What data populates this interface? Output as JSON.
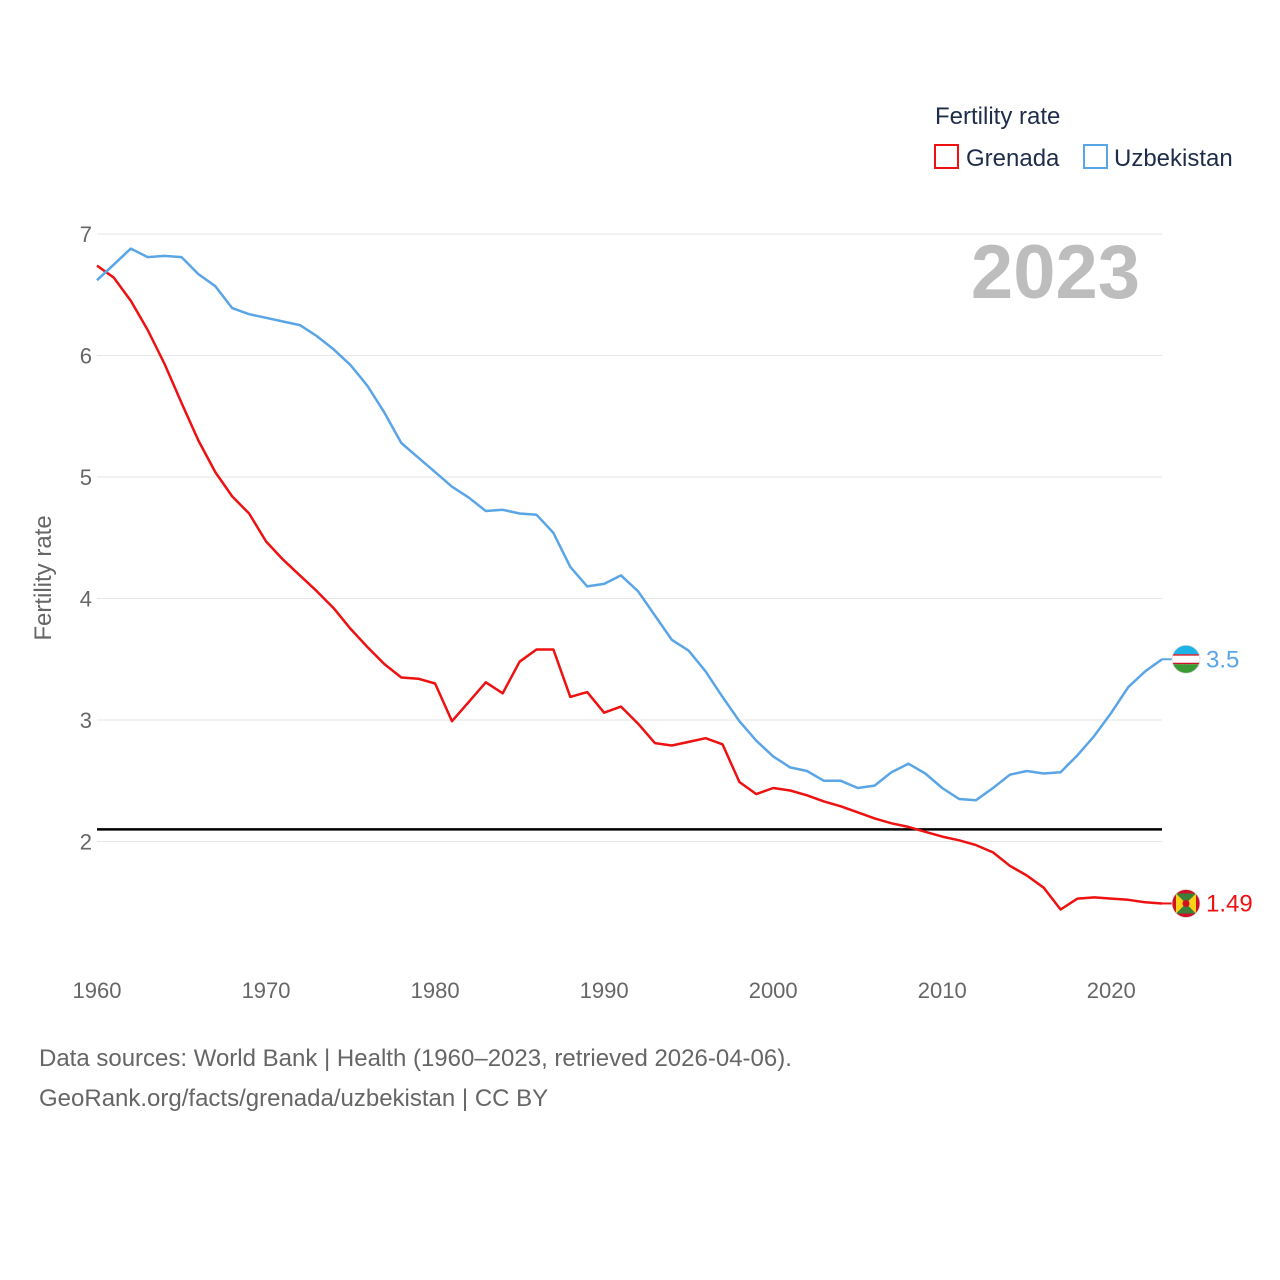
{
  "chart_data": {
    "type": "line",
    "title": "Fertility rate",
    "ylabel": "Fertility rate",
    "xlabel": "",
    "xlim": [
      1960,
      2023
    ],
    "ylim": [
      1,
      7
    ],
    "x_ticks": [
      1960,
      1970,
      1980,
      1990,
      2000,
      2010,
      2020
    ],
    "y_ticks": [
      2,
      3,
      4,
      5,
      6,
      7
    ],
    "year_label": "2023",
    "reference_line": {
      "value": 2.1,
      "color": "#000000"
    },
    "legend": {
      "title": "Fertility rate",
      "placement": "top-right"
    },
    "x": [
      1960,
      1961,
      1962,
      1963,
      1964,
      1965,
      1966,
      1967,
      1968,
      1969,
      1970,
      1971,
      1972,
      1973,
      1974,
      1975,
      1976,
      1977,
      1978,
      1979,
      1980,
      1981,
      1982,
      1983,
      1984,
      1985,
      1986,
      1987,
      1988,
      1989,
      1990,
      1991,
      1992,
      1993,
      1994,
      1995,
      1996,
      1997,
      1998,
      1999,
      2000,
      2001,
      2002,
      2003,
      2004,
      2005,
      2006,
      2007,
      2008,
      2009,
      2010,
      2011,
      2012,
      2013,
      2014,
      2015,
      2016,
      2017,
      2018,
      2019,
      2020,
      2021,
      2022,
      2023
    ],
    "series": [
      {
        "name": "Grenada",
        "color": "#ee1111",
        "end_label": "1.49",
        "flag": "grenada-flag",
        "values": [
          6.74,
          6.64,
          6.45,
          6.21,
          5.93,
          5.61,
          5.3,
          5.04,
          4.84,
          4.7,
          4.47,
          4.32,
          4.19,
          4.06,
          3.92,
          3.75,
          3.6,
          3.46,
          3.35,
          3.34,
          3.3,
          2.99,
          3.15,
          3.31,
          3.22,
          3.48,
          3.58,
          3.58,
          3.19,
          3.23,
          3.06,
          3.11,
          2.97,
          2.81,
          2.79,
          2.82,
          2.85,
          2.8,
          2.49,
          2.39,
          2.44,
          2.42,
          2.38,
          2.33,
          2.29,
          2.24,
          2.19,
          2.15,
          2.12,
          2.08,
          2.04,
          2.01,
          1.97,
          1.91,
          1.8,
          1.72,
          1.62,
          1.44,
          1.53,
          1.54,
          1.53,
          1.52,
          1.5,
          1.49
        ]
      },
      {
        "name": "Uzbekistan",
        "color": "#5aa5e6",
        "end_label": "3.5",
        "flag": "uzbekistan-flag",
        "values": [
          6.62,
          6.75,
          6.88,
          6.81,
          6.82,
          6.81,
          6.67,
          6.57,
          6.39,
          6.34,
          6.31,
          6.28,
          6.25,
          6.16,
          6.05,
          5.92,
          5.75,
          5.53,
          5.28,
          5.16,
          5.04,
          4.92,
          4.83,
          4.72,
          4.73,
          4.7,
          4.69,
          4.54,
          4.26,
          4.1,
          4.12,
          4.19,
          4.06,
          3.86,
          3.66,
          3.57,
          3.4,
          3.19,
          2.99,
          2.83,
          2.7,
          2.61,
          2.58,
          2.5,
          2.5,
          2.44,
          2.46,
          2.57,
          2.64,
          2.56,
          2.44,
          2.35,
          2.34,
          2.44,
          2.55,
          2.58,
          2.56,
          2.57,
          2.71,
          2.87,
          3.06,
          3.27,
          3.4,
          3.5
        ]
      }
    ]
  },
  "footer": {
    "source_line": "Data sources: World Bank | Health (1960–2023, retrieved 2026-04-06).",
    "credit_line": "GeoRank.org/facts/grenada/uzbekistan | CC BY"
  }
}
